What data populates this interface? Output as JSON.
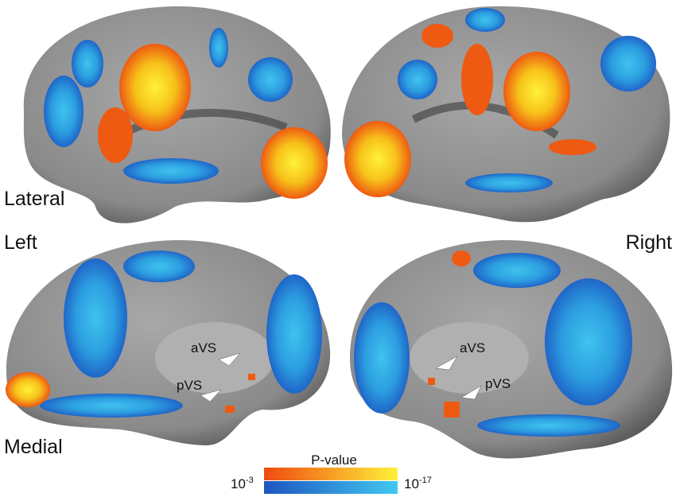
{
  "labels": {
    "lateral": "Lateral",
    "left": "Left",
    "right": "Right",
    "medial": "Medial"
  },
  "annotations": {
    "left": [
      "aVS",
      "pVS"
    ],
    "right": [
      "aVS",
      "pVS"
    ]
  },
  "colorbar": {
    "title": "P-value",
    "min": {
      "base": "10",
      "exponent": "-3"
    },
    "max": {
      "base": "10",
      "exponent": "-17"
    }
  }
}
